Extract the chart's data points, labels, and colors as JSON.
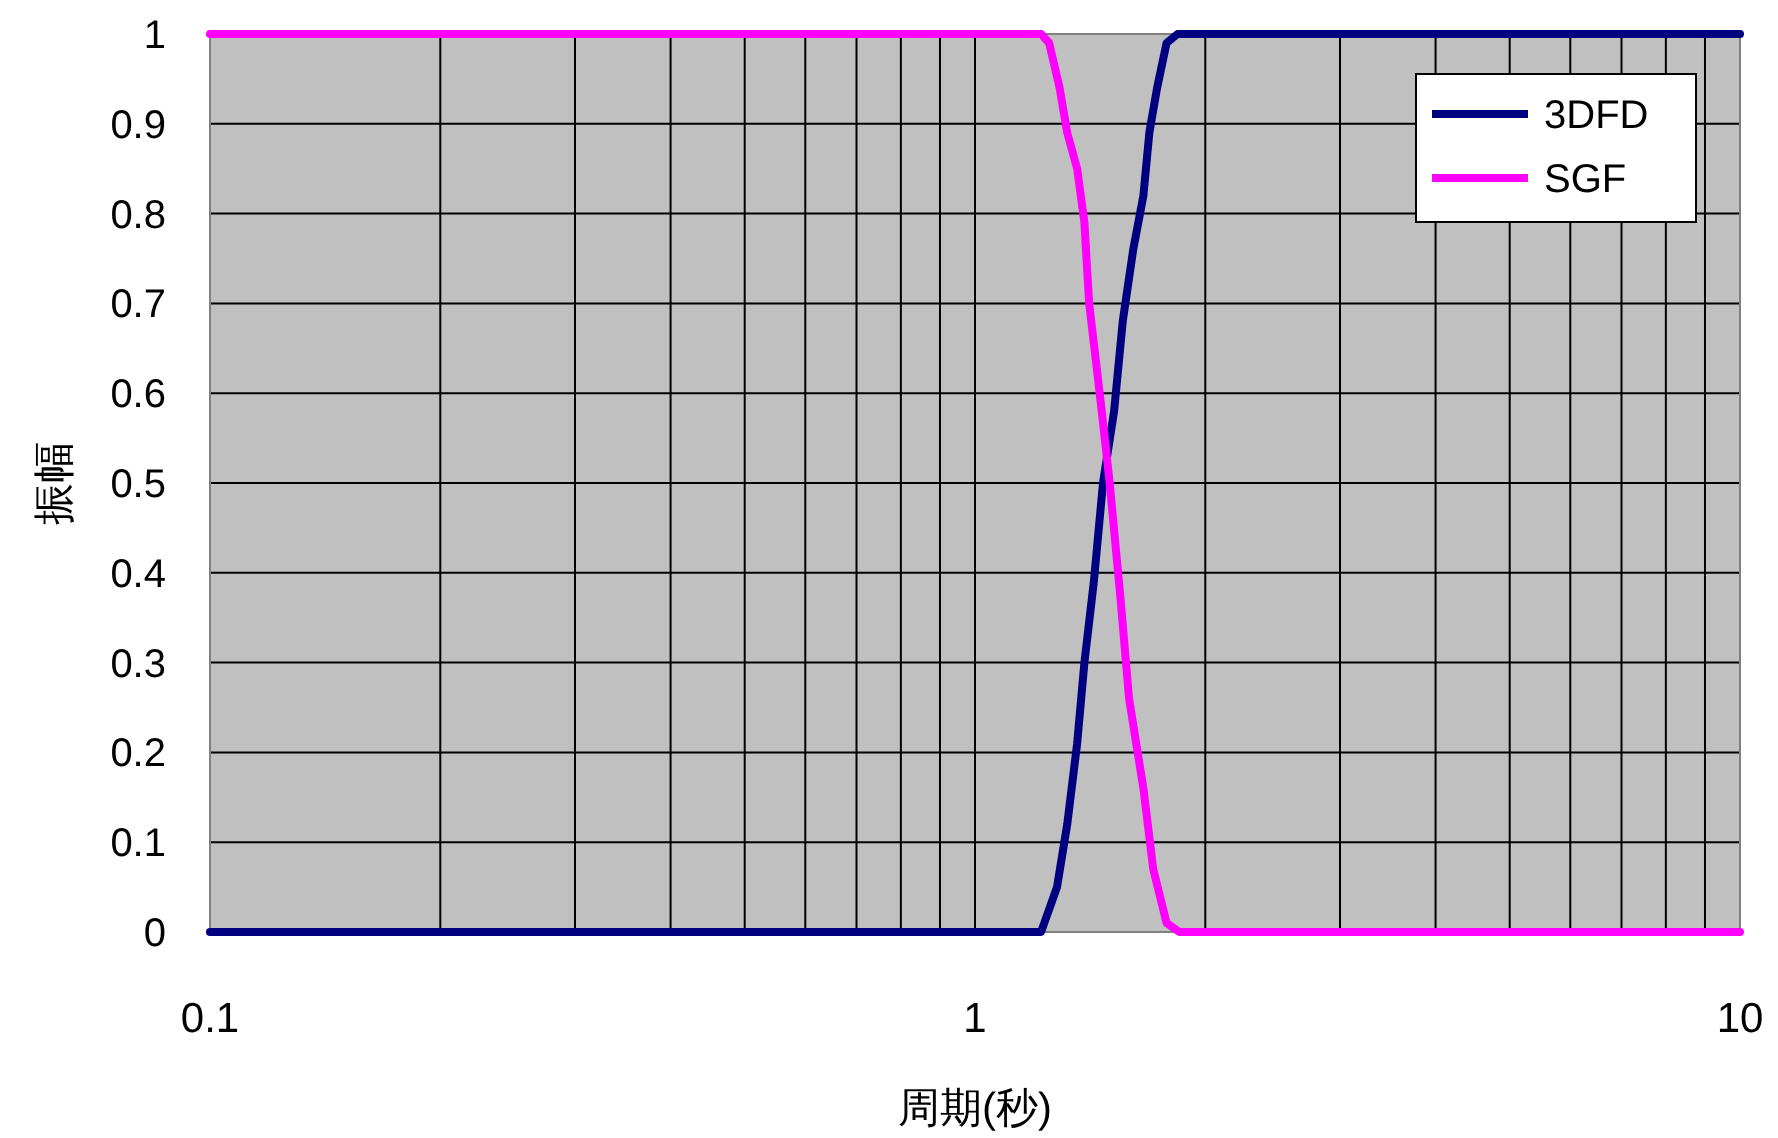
{
  "chart_data": {
    "type": "line",
    "xlabel": "周期(秒)",
    "ylabel": "振幅",
    "log": "x",
    "grid": true,
    "legend": "top right",
    "line_style": "solid",
    "xlim": [
      0.1,
      10
    ],
    "ylim": [
      0,
      1
    ],
    "xticks": [
      0.1,
      {
        "value": 0.2,
        "label": null
      },
      {
        "value": 0.3,
        "label": null
      },
      {
        "value": 0.4,
        "label": null
      },
      {
        "value": 0.5,
        "label": null
      },
      {
        "value": 0.6,
        "label": null
      },
      {
        "value": 0.7,
        "label": null
      },
      {
        "value": 0.8,
        "label": null
      },
      {
        "value": 0.9,
        "label": null
      },
      1,
      {
        "value": 2,
        "label": null
      },
      {
        "value": 3,
        "label": null
      },
      {
        "value": 4,
        "label": null
      },
      {
        "value": 5,
        "label": null
      },
      {
        "value": 6,
        "label": null
      },
      {
        "value": 7,
        "label": null
      },
      {
        "value": 8,
        "label": null
      },
      {
        "value": 9,
        "label": null
      },
      10
    ],
    "yticks": [
      0,
      0.1,
      0.2,
      0.3,
      0.4,
      0.5,
      0.6,
      0.7,
      0.8,
      0.9,
      1
    ],
    "series": [
      {
        "name": "3DFD",
        "color": "#000080",
        "x": [
          0.1,
          1.22,
          1.28,
          1.32,
          1.36,
          1.39,
          1.43,
          1.47,
          1.52,
          1.56,
          1.61,
          1.66,
          1.69,
          1.73,
          1.78,
          1.84,
          10
        ],
        "values": [
          0,
          0,
          0.05,
          0.12,
          0.21,
          0.3,
          0.39,
          0.5,
          0.58,
          0.68,
          0.76,
          0.82,
          0.89,
          0.94,
          0.99,
          1,
          1
        ]
      },
      {
        "name": "SGF",
        "color": "#ff00ff",
        "x": [
          0.1,
          1.22,
          1.25,
          1.29,
          1.32,
          1.36,
          1.39,
          1.41,
          1.46,
          1.5,
          1.55,
          1.59,
          1.66,
          1.71,
          1.78,
          1.85,
          10
        ],
        "values": [
          1,
          1,
          0.99,
          0.94,
          0.89,
          0.85,
          0.79,
          0.7,
          0.59,
          0.5,
          0.37,
          0.26,
          0.16,
          0.07,
          0.01,
          0,
          0
        ]
      }
    ]
  }
}
